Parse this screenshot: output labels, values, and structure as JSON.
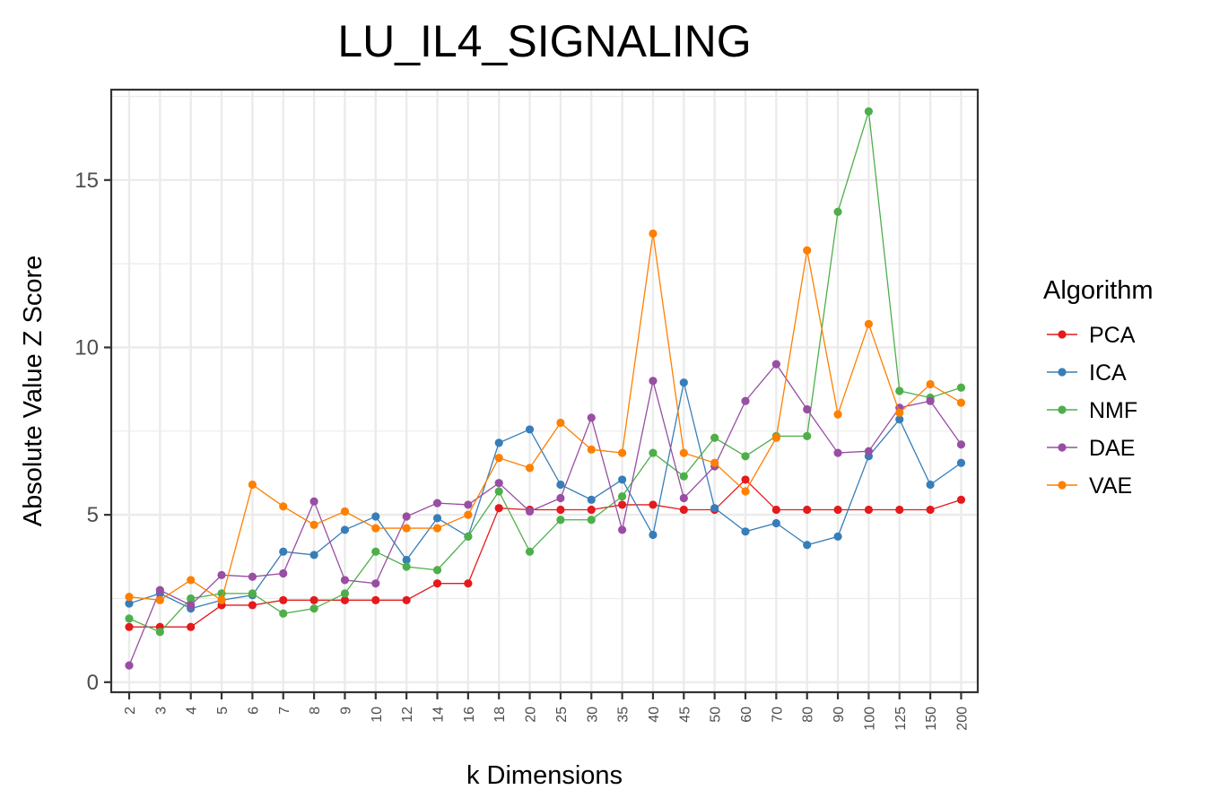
{
  "chart_data": {
    "type": "line",
    "title": "LU_IL4_SIGNALING",
    "xlabel": "k Dimensions",
    "ylabel": "Absolute Value Z Score",
    "ylim": [
      -0.3,
      17.7
    ],
    "yticks": [
      0,
      5,
      10,
      15
    ],
    "grid": true,
    "legend_title": "Algorithm",
    "legend_position": "right",
    "categories": [
      "2",
      "3",
      "4",
      "5",
      "6",
      "7",
      "8",
      "9",
      "10",
      "12",
      "14",
      "16",
      "18",
      "20",
      "25",
      "30",
      "35",
      "40",
      "45",
      "50",
      "60",
      "70",
      "80",
      "90",
      "100",
      "125",
      "150",
      "200"
    ],
    "series": [
      {
        "name": "PCA",
        "color": "#e41a1c",
        "values": [
          1.65,
          1.65,
          1.65,
          2.3,
          2.3,
          2.45,
          2.45,
          2.45,
          2.45,
          2.45,
          2.95,
          2.95,
          5.2,
          5.15,
          5.15,
          5.15,
          5.3,
          5.3,
          5.15,
          5.15,
          6.05,
          5.15,
          5.15,
          5.15,
          5.15,
          5.15,
          5.15,
          5.45
        ]
      },
      {
        "name": "ICA",
        "color": "#377eb8",
        "values": [
          2.35,
          2.65,
          2.2,
          2.45,
          2.6,
          3.9,
          3.8,
          4.55,
          4.95,
          3.65,
          4.9,
          4.35,
          7.15,
          7.55,
          5.9,
          5.45,
          6.05,
          4.4,
          8.95,
          5.2,
          4.5,
          4.75,
          4.1,
          4.35,
          6.75,
          7.85,
          5.9,
          6.55
        ]
      },
      {
        "name": "NMF",
        "color": "#4daf4a",
        "values": [
          1.9,
          1.5,
          2.5,
          2.65,
          2.65,
          2.05,
          2.2,
          2.65,
          3.9,
          3.45,
          3.35,
          4.35,
          5.7,
          3.9,
          4.85,
          4.85,
          5.55,
          6.85,
          6.15,
          7.3,
          6.75,
          7.35,
          7.35,
          14.05,
          17.05,
          8.7,
          8.5,
          8.8
        ]
      },
      {
        "name": "DAE",
        "color": "#984ea3",
        "values": [
          0.5,
          2.75,
          2.3,
          3.2,
          3.15,
          3.25,
          5.4,
          3.05,
          2.95,
          4.95,
          5.35,
          5.3,
          5.95,
          5.1,
          5.5,
          7.9,
          4.55,
          9.0,
          5.5,
          6.45,
          8.4,
          9.5,
          8.15,
          6.85,
          6.9,
          8.2,
          8.4,
          7.1
        ]
      },
      {
        "name": "VAE",
        "color": "#ff7f00",
        "values": [
          2.55,
          2.45,
          3.05,
          2.45,
          5.9,
          5.25,
          4.7,
          5.1,
          4.6,
          4.6,
          4.6,
          5.0,
          6.7,
          6.4,
          7.75,
          6.95,
          6.85,
          13.4,
          6.85,
          6.55,
          5.7,
          7.3,
          12.9,
          8.0,
          10.7,
          8.05,
          8.9,
          8.35
        ]
      }
    ]
  }
}
